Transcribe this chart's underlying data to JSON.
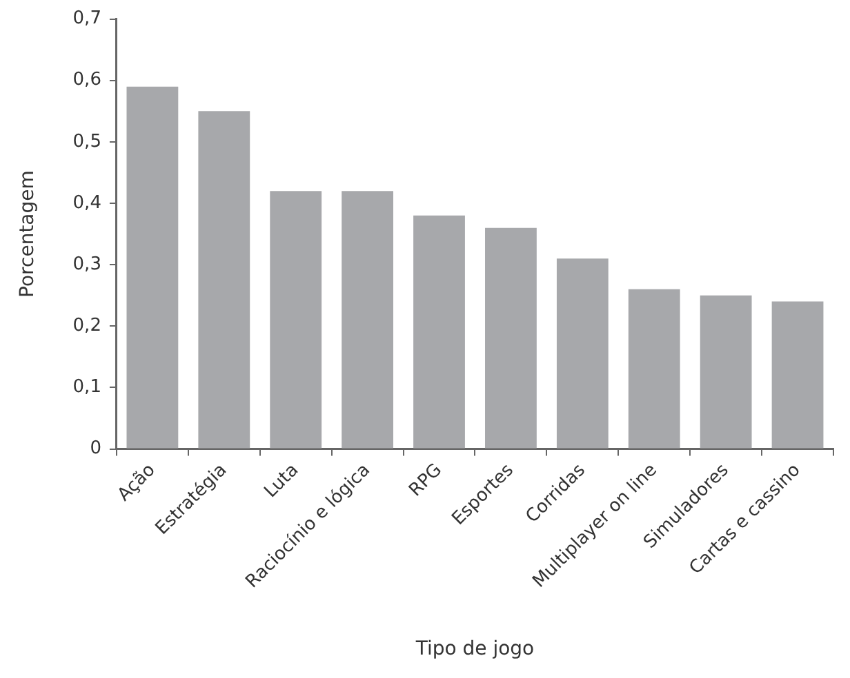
{
  "chart_data": {
    "type": "bar",
    "xlabel": "Tipo de jogo",
    "ylabel": "Porcentagem",
    "categories": [
      "Ação",
      "Estratégia",
      "Luta",
      "Raciocínio e lógica",
      "RPG",
      "Esportes",
      "Corridas",
      "Multiplayer on line",
      "Simuladores",
      "Cartas e cassino"
    ],
    "values": [
      0.59,
      0.55,
      0.42,
      0.42,
      0.38,
      0.36,
      0.31,
      0.26,
      0.25,
      0.24
    ],
    "color": "#a7a8ab",
    "ylim": [
      0,
      0.7
    ],
    "yticks": [
      0,
      {
        "value": 0.1,
        "label": "0,1"
      },
      {
        "value": 0.2,
        "label": "0,2"
      },
      {
        "value": 0.3,
        "label": "0,3"
      },
      {
        "value": 0.4,
        "label": "0,4"
      },
      {
        "value": 0.5,
        "label": "0,5"
      },
      {
        "value": 0.6,
        "label": "0,6"
      },
      {
        "value": 0.7,
        "label": "0,7"
      }
    ],
    "grid": false,
    "legend": false
  }
}
